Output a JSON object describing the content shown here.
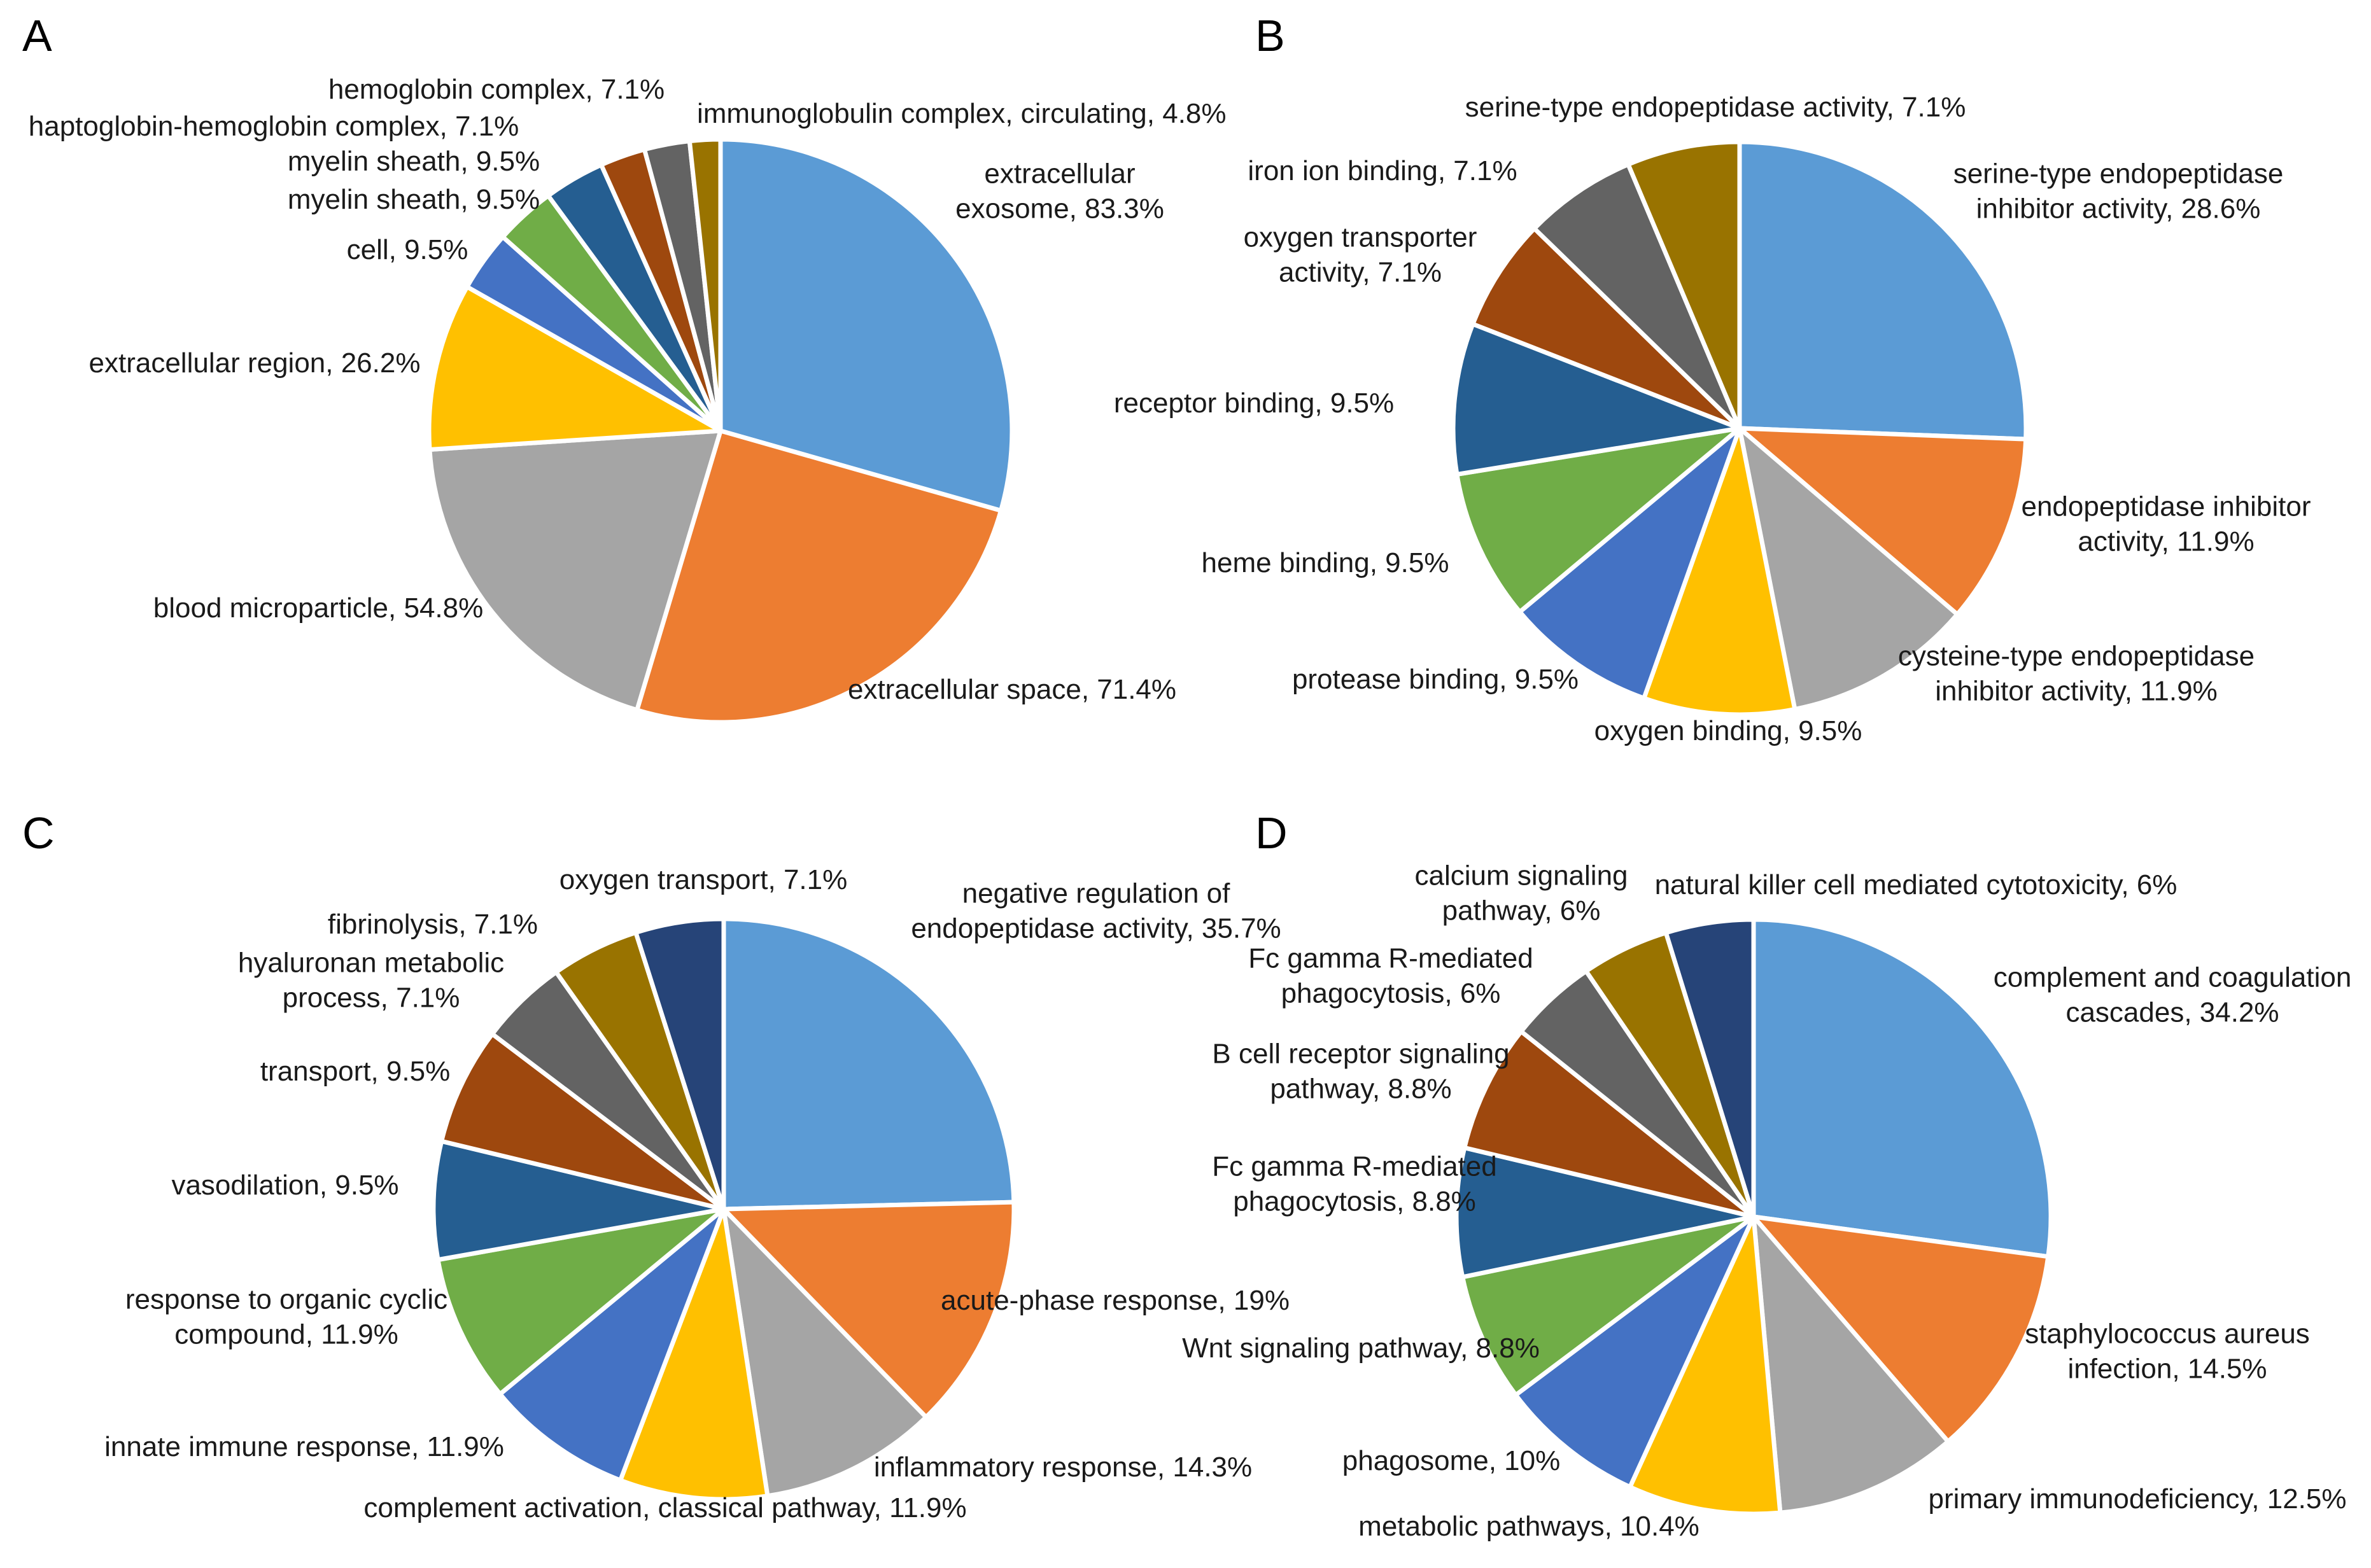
{
  "chart_data": [
    {
      "type": "pie",
      "panel": "A",
      "slices": [
        {
          "label": [
            "extracellular",
            "exosome, 83.3%"
          ],
          "value": 83.3,
          "color": "#5B9BD5"
        },
        {
          "label": [
            "extracellular space, 71.4%"
          ],
          "value": 71.4,
          "color": "#ED7D31"
        },
        {
          "label": [
            "blood microparticle, 54.8%"
          ],
          "value": 54.8,
          "color": "#A5A5A5"
        },
        {
          "label": [
            "extracellular region, 26.2%"
          ],
          "value": 26.2,
          "color": "#FFC000"
        },
        {
          "label": [
            "cell, 9.5%"
          ],
          "value": 9.5,
          "color": "#4472C4"
        },
        {
          "label": [
            "myelin sheath, 9.5%"
          ],
          "value": 9.5,
          "color": "#70AD47"
        },
        {
          "label": [
            "myelin sheath, 9.5%"
          ],
          "value": 9.5,
          "color": "#255E91"
        },
        {
          "label": [
            "haptoglobin-hemoglobin complex, 7.1%"
          ],
          "value": 7.1,
          "color": "#9E480E"
        },
        {
          "label": [
            "hemoglobin complex, 7.1%"
          ],
          "value": 7.1,
          "color": "#636363"
        },
        {
          "label": [
            "immunoglobulin complex, circulating, 4.8%"
          ],
          "value": 4.8,
          "color": "#997300"
        }
      ]
    },
    {
      "type": "pie",
      "panel": "B",
      "slices": [
        {
          "label": [
            "serine-type endopeptidase",
            "inhibitor activity, 28.6%"
          ],
          "value": 28.6,
          "color": "#5B9BD5"
        },
        {
          "label": [
            "endopeptidase inhibitor",
            "activity, 11.9%"
          ],
          "value": 11.9,
          "color": "#ED7D31"
        },
        {
          "label": [
            "cysteine-type endopeptidase",
            "inhibitor activity, 11.9%"
          ],
          "value": 11.9,
          "color": "#A5A5A5"
        },
        {
          "label": [
            "oxygen binding, 9.5%"
          ],
          "value": 9.5,
          "color": "#FFC000"
        },
        {
          "label": [
            "protease binding, 9.5%"
          ],
          "value": 9.5,
          "color": "#4472C4"
        },
        {
          "label": [
            "heme binding, 9.5%"
          ],
          "value": 9.5,
          "color": "#70AD47"
        },
        {
          "label": [
            "receptor binding, 9.5%"
          ],
          "value": 9.5,
          "color": "#255E91"
        },
        {
          "label": [
            "oxygen transporter",
            "activity, 7.1%"
          ],
          "value": 7.1,
          "color": "#9E480E"
        },
        {
          "label": [
            "iron ion binding, 7.1%"
          ],
          "value": 7.1,
          "color": "#636363"
        },
        {
          "label": [
            "serine-type endopeptidase activity, 7.1%"
          ],
          "value": 7.1,
          "color": "#997300"
        }
      ]
    },
    {
      "type": "pie",
      "panel": "C",
      "slices": [
        {
          "label": [
            "negative regulation of",
            "endopeptidase activity, 35.7%"
          ],
          "value": 35.7,
          "color": "#5B9BD5"
        },
        {
          "label": [
            "acute-phase response, 19%"
          ],
          "value": 19,
          "color": "#ED7D31"
        },
        {
          "label": [
            "inflammatory response, 14.3%"
          ],
          "value": 14.3,
          "color": "#A5A5A5"
        },
        {
          "label": [
            "complement activation, classical pathway, 11.9%"
          ],
          "value": 11.9,
          "color": "#FFC000"
        },
        {
          "label": [
            "innate immune response, 11.9%"
          ],
          "value": 11.9,
          "color": "#4472C4"
        },
        {
          "label": [
            "response to organic cyclic",
            "compound, 11.9%"
          ],
          "value": 11.9,
          "color": "#70AD47"
        },
        {
          "label": [
            "vasodilation, 9.5%"
          ],
          "value": 9.5,
          "color": "#255E91"
        },
        {
          "label": [
            "transport, 9.5%"
          ],
          "value": 9.5,
          "color": "#9E480E"
        },
        {
          "label": [
            "hyaluronan metabolic",
            "process, 7.1%"
          ],
          "value": 7.1,
          "color": "#636363"
        },
        {
          "label": [
            "fibrinolysis, 7.1%"
          ],
          "value": 7.1,
          "color": "#997300"
        },
        {
          "label": [
            "oxygen transport, 7.1%"
          ],
          "value": 7.1,
          "color": "#264478"
        }
      ]
    },
    {
      "type": "pie",
      "panel": "D",
      "slices": [
        {
          "label": [
            "complement and coagulation",
            "cascades, 34.2%"
          ],
          "value": 34.2,
          "color": "#5B9BD5"
        },
        {
          "label": [
            "staphylococcus aureus",
            "infection, 14.5%"
          ],
          "value": 14.5,
          "color": "#ED7D31"
        },
        {
          "label": [
            "primary immunodeficiency, 12.5%"
          ],
          "value": 12.5,
          "color": "#A5A5A5"
        },
        {
          "label": [
            "metabolic pathways, 10.4%"
          ],
          "value": 10.4,
          "color": "#FFC000"
        },
        {
          "label": [
            "phagosome, 10%"
          ],
          "value": 10,
          "color": "#4472C4"
        },
        {
          "label": [
            "Wnt signaling pathway, 8.8%"
          ],
          "value": 8.8,
          "color": "#70AD47"
        },
        {
          "label": [
            "Fc gamma R-mediated",
            "phagocytosis, 8.8%"
          ],
          "value": 8.8,
          "color": "#255E91"
        },
        {
          "label": [
            "B cell receptor signaling",
            "pathway, 8.8%"
          ],
          "value": 8.8,
          "color": "#9E480E"
        },
        {
          "label": [
            "Fc gamma R-mediated",
            "phagocytosis, 6%"
          ],
          "value": 6,
          "color": "#636363"
        },
        {
          "label": [
            "calcium signaling",
            "pathway, 6%"
          ],
          "value": 6,
          "color": "#997300"
        },
        {
          "label": [
            "natural killer cell mediated cytotoxicity, 6%"
          ],
          "value": 6,
          "color": "#264478"
        }
      ]
    }
  ]
}
